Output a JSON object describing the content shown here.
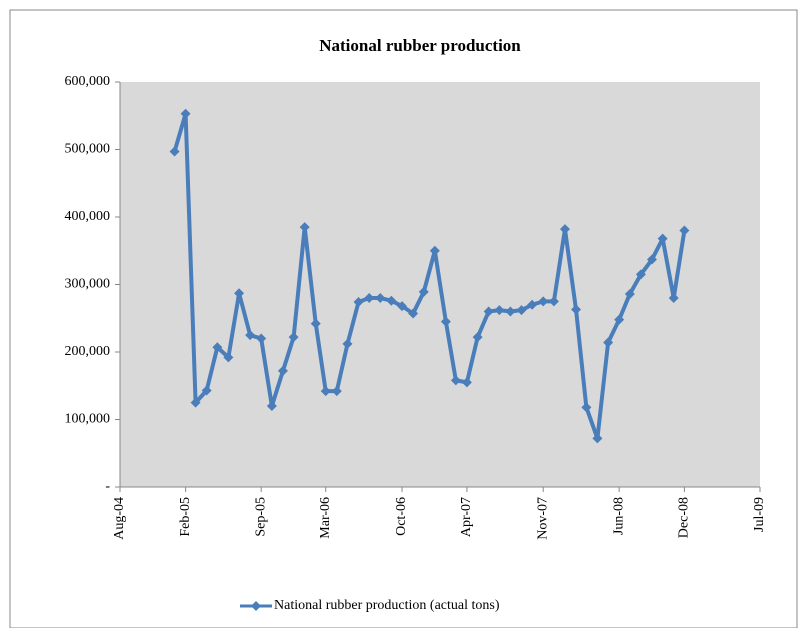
{
  "chart_data": {
    "type": "line",
    "title": "National rubber production",
    "x": [
      "2005-01",
      "2005-02",
      "2005-03",
      "2005-04",
      "2005-05",
      "2005-06",
      "2005-07",
      "2005-08",
      "2005-09",
      "2005-10",
      "2005-11",
      "2005-12",
      "2006-01",
      "2006-02",
      "2006-03",
      "2006-04",
      "2006-05",
      "2006-06",
      "2006-07",
      "2006-08",
      "2006-09",
      "2006-10",
      "2006-11",
      "2006-12",
      "2007-01",
      "2007-02",
      "2007-03",
      "2007-04",
      "2007-05",
      "2007-06",
      "2007-07",
      "2007-08",
      "2007-09",
      "2007-10",
      "2007-11",
      "2007-12",
      "2008-01",
      "2008-02",
      "2008-03",
      "2008-04",
      "2008-05",
      "2008-06",
      "2008-07",
      "2008-08",
      "2008-09",
      "2008-10",
      "2008-11",
      "2008-12"
    ],
    "series": [
      {
        "name": "National rubber production (actual tons)",
        "color": "#4a7ebb",
        "values": [
          497000,
          553000,
          125000,
          143000,
          207000,
          192000,
          287000,
          225000,
          220000,
          120000,
          172000,
          222000,
          385000,
          242000,
          142000,
          142000,
          212000,
          274000,
          280000,
          280000,
          276000,
          268000,
          257000,
          289000,
          350000,
          245000,
          158000,
          155000,
          222000,
          260000,
          262000,
          260000,
          262000,
          270000,
          275000,
          275000,
          382000,
          263000,
          118000,
          72000,
          214000,
          248000,
          286000,
          315000,
          337000,
          368000,
          280000,
          380000
        ]
      }
    ],
    "xlim": [
      "2004-08",
      "2009-07"
    ],
    "xticks": [
      {
        "value": "2004-08",
        "label": "Aug-04"
      },
      {
        "value": "2005-02",
        "label": "Feb-05"
      },
      {
        "value": "2005-09",
        "label": "Sep-05"
      },
      {
        "value": "2006-03",
        "label": "Mar-06"
      },
      {
        "value": "2006-10",
        "label": "Oct-06"
      },
      {
        "value": "2007-04",
        "label": "Apr-07"
      },
      {
        "value": "2007-11",
        "label": "Nov-07"
      },
      {
        "value": "2008-06",
        "label": "Jun-08"
      },
      {
        "value": "2008-12",
        "label": "Dec-08"
      },
      {
        "value": "2009-07",
        "label": "Jul-09"
      }
    ],
    "ylim": [
      0,
      600000
    ],
    "yticks": [
      {
        "value": 0,
        "label": "-"
      },
      {
        "value": 100000,
        "label": "100,000"
      },
      {
        "value": 200000,
        "label": "200,000"
      },
      {
        "value": 300000,
        "label": "300,000"
      },
      {
        "value": 400000,
        "label": "400,000"
      },
      {
        "value": 500000,
        "label": "500,000"
      },
      {
        "value": 600000,
        "label": "600,000"
      }
    ],
    "legend": "bottom"
  }
}
